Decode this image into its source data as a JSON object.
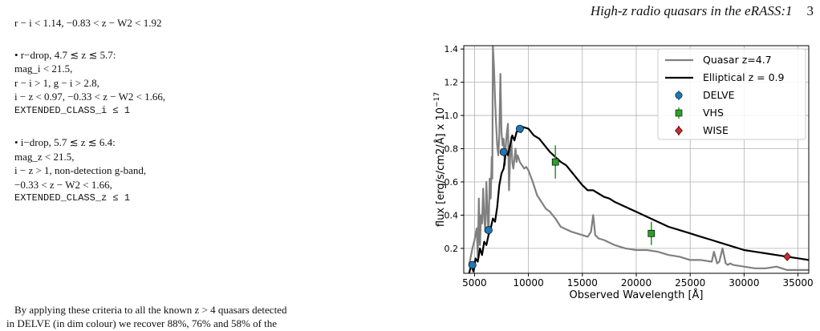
{
  "header": {
    "title": "High-z radio quasars in the eRASS:1",
    "page": "3"
  },
  "criteria": {
    "top_line": "r − i < 1.14, −0.83 < z − W2 < 1.92",
    "r_drop": {
      "heading": "• r−drop, 4.7 ≲ z ≲ 5.7:",
      "lines": [
        "mag_i < 21.5,",
        "r − i > 1, g − i > 2.8,",
        "i − z < 0.97, −0.33 < z − W2 < 1.66,"
      ],
      "class_line": "EXTENDED_CLASS_i ≤ 1"
    },
    "i_drop": {
      "heading": "• i−drop, 5.7 ≲ z ≲ 6.4:",
      "lines": [
        "mag_z < 21.5,",
        "i − z > 1, non-detection g-band,",
        "−0.33 < z − W2 < 1.66,"
      ],
      "class_line": "EXTENDED_CLASS_z ≤ 1"
    }
  },
  "body_text": {
    "line1": "By applying these criteria to all the known z > 4 quasars detected",
    "line2": "in DELVE (in dim colour) we recover 88%, 76% and 58% of the"
  },
  "chart_data": {
    "type": "line",
    "xlabel": "Observed Wavelength [Å]",
    "ylabel": "flux [erg/s/cm2/Å] x 10",
    "ylabel_exp": "−17",
    "xlim": [
      4000,
      36000
    ],
    "ylim": [
      0.05,
      1.42
    ],
    "x_ticks": [
      5000,
      10000,
      15000,
      20000,
      25000,
      30000,
      35000
    ],
    "y_ticks": [
      0.2,
      0.4,
      0.6,
      0.8,
      1.0,
      1.2,
      1.4
    ],
    "grid": true,
    "legend_position": "top-right",
    "colors": {
      "quasar": "#808080",
      "elliptical": "#000000",
      "delve": "#1f77b4",
      "vhs": "#2ca02c",
      "wise": "#d62728"
    },
    "series": [
      {
        "name": "Quasar z=4.7",
        "style": "line",
        "x": [
          4500,
          4800,
          5000,
          5200,
          5300,
          5400,
          5500,
          5600,
          5700,
          5800,
          5900,
          6000,
          6100,
          6200,
          6300,
          6400,
          6500,
          6600,
          6650,
          6700,
          6800,
          6900,
          7000,
          7100,
          7200,
          7300,
          7400,
          7500,
          7600,
          7700,
          7800,
          7900,
          8000,
          8100,
          8200,
          8300,
          8400,
          8500,
          8600,
          8700,
          8800,
          8900,
          9000,
          9200,
          9400,
          9600,
          9800,
          10000,
          10400,
          10800,
          11200,
          11600,
          12000,
          12500,
          13000,
          14000,
          15000,
          15500,
          15800,
          16000,
          16200,
          16500,
          17000,
          18000,
          19000,
          20000,
          21000,
          22000,
          23000,
          24000,
          25000,
          26000,
          27000,
          27200,
          27500,
          27700,
          28000,
          28300,
          28500,
          28700,
          29000,
          30000,
          31000,
          32000,
          33000,
          34000,
          35000,
          36000
        ],
        "y": [
          0.1,
          0.2,
          0.25,
          0.32,
          0.15,
          0.5,
          0.22,
          0.4,
          0.35,
          0.56,
          0.38,
          0.3,
          0.6,
          0.42,
          0.28,
          0.62,
          0.5,
          0.75,
          0.62,
          1.42,
          1.3,
          1.1,
          0.95,
          0.82,
          0.76,
          0.88,
          1.25,
          0.9,
          0.82,
          0.86,
          0.7,
          0.82,
          0.9,
          0.95,
          0.55,
          0.75,
          0.87,
          0.72,
          0.68,
          0.74,
          0.8,
          0.72,
          0.76,
          0.72,
          0.7,
          0.68,
          0.69,
          0.67,
          0.6,
          0.52,
          0.48,
          0.44,
          0.42,
          0.38,
          0.33,
          0.3,
          0.28,
          0.27,
          0.3,
          0.4,
          0.28,
          0.26,
          0.25,
          0.22,
          0.2,
          0.19,
          0.19,
          0.18,
          0.16,
          0.15,
          0.13,
          0.13,
          0.12,
          0.18,
          0.11,
          0.12,
          0.2,
          0.11,
          0.1,
          0.11,
          0.1,
          0.09,
          0.08,
          0.08,
          0.09,
          0.07,
          0.07,
          0.07
        ]
      },
      {
        "name": "Elliptical z = 0.9",
        "style": "line",
        "x": [
          4500,
          4700,
          4900,
          5100,
          5300,
          5500,
          5700,
          5900,
          6100,
          6300,
          6500,
          6700,
          6900,
          7100,
          7300,
          7500,
          7700,
          7900,
          8100,
          8300,
          8500,
          8700,
          8900,
          9100,
          9300,
          9500,
          10000,
          10500,
          11000,
          11500,
          12000,
          12500,
          13000,
          13500,
          14000,
          14500,
          15000,
          15500,
          16000,
          16500,
          17000,
          17500,
          18000,
          19000,
          20000,
          21000,
          22000,
          23000,
          24000,
          25000,
          26000,
          27000,
          28000,
          29000,
          30000,
          31000,
          32000,
          33000,
          34000,
          35000,
          36000
        ],
        "y": [
          0.05,
          0.1,
          0.06,
          0.14,
          0.12,
          0.2,
          0.16,
          0.24,
          0.22,
          0.28,
          0.32,
          0.38,
          0.36,
          0.45,
          0.58,
          0.65,
          0.68,
          0.78,
          0.76,
          0.82,
          0.88,
          0.85,
          0.9,
          0.92,
          0.9,
          0.93,
          0.92,
          0.88,
          0.86,
          0.82,
          0.78,
          0.75,
          0.72,
          0.7,
          0.66,
          0.62,
          0.58,
          0.55,
          0.55,
          0.53,
          0.51,
          0.5,
          0.48,
          0.45,
          0.42,
          0.39,
          0.36,
          0.33,
          0.31,
          0.29,
          0.27,
          0.25,
          0.23,
          0.21,
          0.19,
          0.18,
          0.17,
          0.16,
          0.15,
          0.14,
          0.13
        ]
      },
      {
        "name": "DELVE",
        "style": "points",
        "x": [
          4800,
          6300,
          7700,
          9200
        ],
        "y": [
          0.1,
          0.31,
          0.78,
          0.92
        ]
      },
      {
        "name": "VHS",
        "style": "points",
        "x": [
          12500,
          21400
        ],
        "y": [
          0.72,
          0.29
        ],
        "yerr": [
          0.1,
          0.07
        ]
      },
      {
        "name": "WISE",
        "style": "points",
        "x": [
          34000
        ],
        "y": [
          0.15
        ]
      }
    ]
  }
}
